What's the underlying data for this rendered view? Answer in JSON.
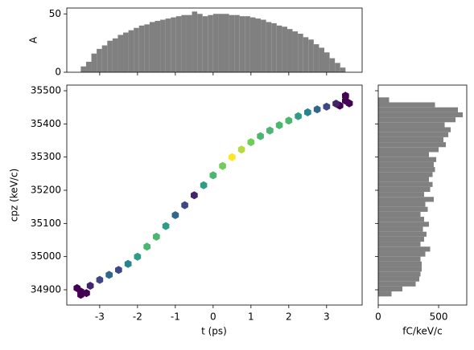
{
  "chart_data": [
    {
      "type": "histogram",
      "ylabel": "A",
      "color": "#808080",
      "ylim": [
        0,
        55
      ],
      "yticks": [
        0,
        50
      ],
      "bins": [
        -3.5,
        -3.36,
        -3.22,
        -3.08,
        -2.94,
        -2.8,
        -2.66,
        -2.52,
        -2.38,
        -2.24,
        -2.1,
        -1.96,
        -1.82,
        -1.68,
        -1.54,
        -1.4,
        -1.26,
        -1.12,
        -0.98,
        -0.84,
        -0.7,
        -0.56,
        -0.42,
        -0.28,
        -0.14,
        0,
        0.14,
        0.28,
        0.42,
        0.56,
        0.7,
        0.84,
        0.98,
        1.12,
        1.26,
        1.4,
        1.54,
        1.68,
        1.82,
        1.96,
        2.1,
        2.24,
        2.38,
        2.52,
        2.66,
        2.8,
        2.94,
        3.08,
        3.22,
        3.36,
        3.5
      ],
      "values": [
        5,
        9,
        16,
        20,
        23,
        27,
        29,
        32,
        34,
        36,
        38,
        40,
        41,
        43,
        44,
        45,
        46,
        47,
        48,
        49,
        49,
        52,
        50,
        48,
        49,
        50,
        50,
        50,
        49,
        49,
        48,
        48,
        47,
        46,
        45,
        43,
        42,
        40,
        39,
        37,
        35,
        33,
        30,
        28,
        24,
        21,
        17,
        12,
        8,
        4
      ]
    },
    {
      "type": "hexbin",
      "xlabel": "t (ps)",
      "ylabel": "cpz (keV/c)",
      "colormap": "viridis",
      "xlim": [
        -3.87,
        3.94
      ],
      "ylim": [
        34854,
        35517
      ],
      "xticks": [
        -3,
        -2,
        -1,
        0,
        1,
        2,
        3
      ],
      "yticks": [
        34900,
        35000,
        35100,
        35200,
        35300,
        35400,
        35500
      ],
      "x": [
        -3.5,
        -3.25,
        -3,
        -2.75,
        -2.5,
        -2.25,
        -2,
        -1.75,
        -1.5,
        -1.25,
        -1,
        -0.75,
        -0.5,
        -0.25,
        0,
        0.25,
        0.5,
        0.75,
        1,
        1.25,
        1.5,
        1.75,
        2,
        2.25,
        2.5,
        2.75,
        3,
        3.25,
        3.5,
        -3.5,
        -3.35,
        -3.6,
        3.5,
        3.35,
        3.6
      ],
      "y": [
        34895,
        34912,
        34930,
        34945,
        34960,
        34978,
        35000,
        35030,
        35060,
        35092,
        35125,
        35155,
        35185,
        35215,
        35245,
        35273,
        35300,
        35323,
        35345,
        35363,
        35380,
        35396,
        35410,
        35423,
        35435,
        35444,
        35452,
        35461,
        35470,
        34885,
        34890,
        34905,
        35485,
        35455,
        35462
      ],
      "counts": [
        1,
        2,
        3,
        4,
        3,
        5,
        6,
        7,
        7,
        6,
        4,
        3,
        2,
        6,
        7,
        8,
        10,
        9,
        8,
        7,
        7,
        7,
        7,
        6,
        5,
        4,
        3,
        2,
        1,
        1,
        1,
        1,
        1,
        1,
        1
      ]
    },
    {
      "type": "histogram",
      "orientation": "horizontal",
      "xlabel": "fC/keV/c",
      "color": "#808080",
      "xlim": [
        0,
        733
      ],
      "xticks": [
        0,
        500
      ],
      "bins": [
        34880,
        34895,
        34910,
        34925,
        34940,
        34955,
        34970,
        34985,
        35000,
        35015,
        35030,
        35045,
        35060,
        35075,
        35090,
        35105,
        35120,
        35135,
        35150,
        35165,
        35180,
        35195,
        35210,
        35225,
        35240,
        35255,
        35270,
        35285,
        35300,
        35315,
        35330,
        35345,
        35360,
        35375,
        35390,
        35405,
        35420,
        35435,
        35450,
        35465,
        35480
      ],
      "values": [
        110,
        200,
        310,
        340,
        350,
        360,
        360,
        350,
        390,
        430,
        350,
        380,
        400,
        370,
        420,
        380,
        350,
        410,
        390,
        460,
        380,
        430,
        450,
        420,
        450,
        470,
        460,
        480,
        420,
        500,
        560,
        540,
        580,
        600,
        550,
        640,
        700,
        660,
        470,
        90
      ]
    }
  ]
}
